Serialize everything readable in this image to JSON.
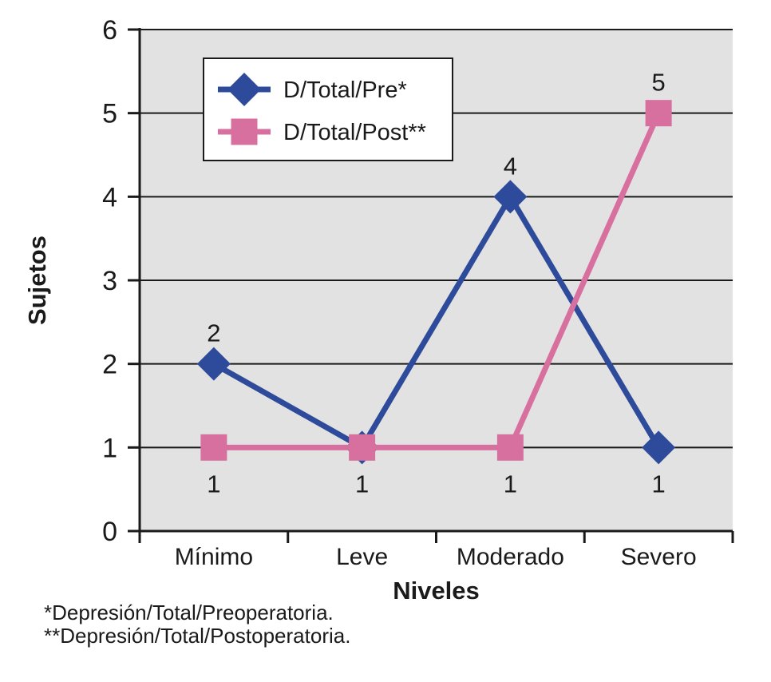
{
  "chart_data": {
    "type": "line",
    "categories": [
      "Mínimo",
      "Leve",
      "Moderado",
      "Severo"
    ],
    "series": [
      {
        "name": "D/Total/Pre*",
        "values": [
          2,
          1,
          4,
          1
        ],
        "color": "#2e4b9b",
        "marker": "diamond"
      },
      {
        "name": "D/Total/Post**",
        "values": [
          1,
          1,
          1,
          5
        ],
        "color": "#d8709f",
        "marker": "square"
      }
    ],
    "title": "",
    "xlabel": "Niveles",
    "ylabel": "Sujetos",
    "ylim": [
      0,
      6
    ],
    "yticks": [
      0,
      1,
      2,
      3,
      4,
      5,
      6
    ],
    "grid": true,
    "plot_bg": "#e2e2e2",
    "axis_color": "#1a1a1a",
    "legend_position": "top-left-inside",
    "point_labels_above": [
      {
        "series": 0,
        "index": 0,
        "text": "2"
      },
      {
        "series": 0,
        "index": 2,
        "text": "4"
      },
      {
        "series": 1,
        "index": 3,
        "text": "5"
      }
    ],
    "point_labels_below": [
      {
        "index": 0,
        "at_value": 1,
        "text": "1"
      },
      {
        "index": 1,
        "at_value": 1,
        "text": "1"
      },
      {
        "index": 2,
        "at_value": 1,
        "text": "1"
      },
      {
        "index": 3,
        "at_value": 1,
        "text": "1"
      }
    ]
  },
  "footnotes": [
    "*Depresión/Total/Preoperatoria.",
    "**Depresión/Total/Postoperatoria."
  ]
}
